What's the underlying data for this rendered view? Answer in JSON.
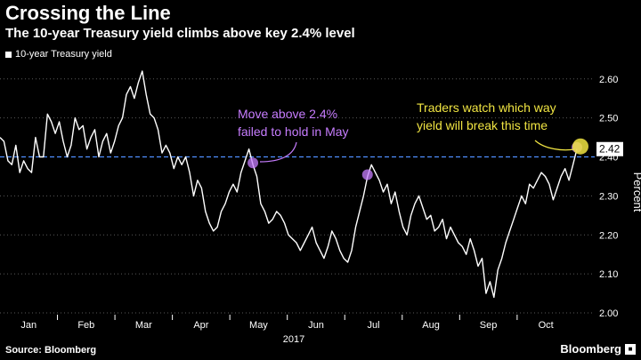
{
  "title": "Crossing the Line",
  "subtitle": "The 10-year Treasury yield climbs above key 2.4% level",
  "source": "Source: Bloomberg",
  "brand": "Bloomberg",
  "colors": {
    "background": "#000000",
    "line": "#ffffff",
    "threshold": "#4f8fff",
    "purple": "#c77dff",
    "yellow": "#f0e442",
    "grid": "#5a5a5a"
  },
  "chart_data": {
    "type": "line",
    "xlabel": "2017",
    "ylabel": "Percent",
    "ylim": [
      2.0,
      2.62
    ],
    "yticks": [
      "2.00",
      "2.10",
      "2.20",
      "2.30",
      "2.40",
      "2.50",
      "2.60"
    ],
    "ytick_values": [
      2.0,
      2.1,
      2.2,
      2.3,
      2.4,
      2.5,
      2.6
    ],
    "month_labels": [
      "Jan",
      "Feb",
      "Mar",
      "Apr",
      "May",
      "Jun",
      "Jul",
      "Aug",
      "Sep",
      "Oct"
    ],
    "grid": "horizontal dotted",
    "threshold": 2.4,
    "last_value_label": "2.42",
    "series": [
      {
        "name": "10-year Treasury yield",
        "values": [
          2.45,
          2.44,
          2.39,
          2.38,
          2.43,
          2.36,
          2.39,
          2.37,
          2.36,
          2.45,
          2.4,
          2.4,
          2.51,
          2.49,
          2.46,
          2.49,
          2.44,
          2.4,
          2.43,
          2.5,
          2.47,
          2.48,
          2.42,
          2.45,
          2.47,
          2.4,
          2.44,
          2.46,
          2.41,
          2.44,
          2.48,
          2.5,
          2.56,
          2.58,
          2.55,
          2.59,
          2.62,
          2.56,
          2.51,
          2.5,
          2.47,
          2.41,
          2.43,
          2.41,
          2.37,
          2.4,
          2.38,
          2.4,
          2.36,
          2.3,
          2.34,
          2.32,
          2.26,
          2.23,
          2.21,
          2.22,
          2.26,
          2.28,
          2.31,
          2.33,
          2.31,
          2.36,
          2.39,
          2.42,
          2.38,
          2.35,
          2.28,
          2.26,
          2.23,
          2.24,
          2.26,
          2.25,
          2.23,
          2.2,
          2.19,
          2.18,
          2.16,
          2.18,
          2.2,
          2.22,
          2.18,
          2.16,
          2.14,
          2.17,
          2.21,
          2.19,
          2.16,
          2.14,
          2.13,
          2.16,
          2.22,
          2.26,
          2.3,
          2.35,
          2.38,
          2.36,
          2.34,
          2.31,
          2.33,
          2.28,
          2.31,
          2.26,
          2.22,
          2.2,
          2.25,
          2.28,
          2.3,
          2.27,
          2.24,
          2.25,
          2.21,
          2.22,
          2.24,
          2.19,
          2.22,
          2.2,
          2.18,
          2.17,
          2.15,
          2.19,
          2.16,
          2.12,
          2.14,
          2.05,
          2.08,
          2.04,
          2.11,
          2.14,
          2.18,
          2.21,
          2.24,
          2.27,
          2.3,
          2.28,
          2.33,
          2.32,
          2.34,
          2.36,
          2.35,
          2.33,
          2.29,
          2.32,
          2.35,
          2.37,
          2.34,
          2.38,
          2.42
        ]
      }
    ],
    "annotations": [
      {
        "text_lines": [
          "Move above 2.4%",
          "failed to hold in May"
        ],
        "color": "purple"
      },
      {
        "text_lines": [
          "Traders watch which way",
          "yield will break this time"
        ],
        "color": "yellow"
      }
    ]
  }
}
